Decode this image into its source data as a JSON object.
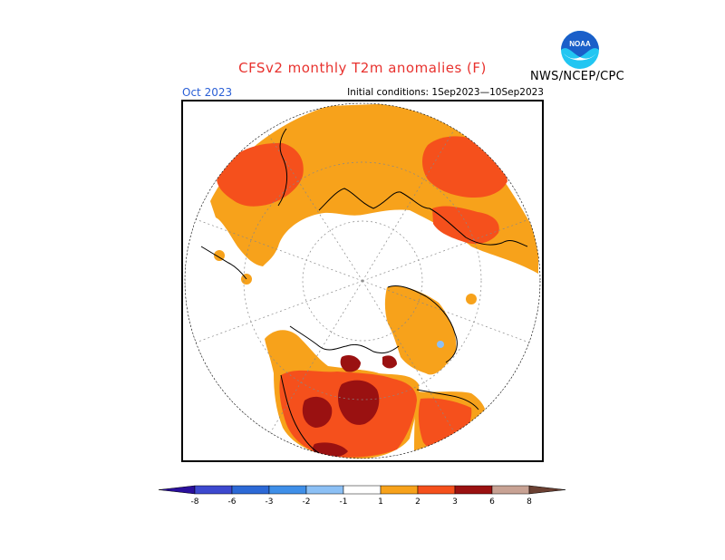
{
  "header": {
    "title": "CFSv2 monthly T2m anomalies (F)",
    "month": "Oct 2023",
    "initial_conditions": "Initial conditions: 1Sep2023—10Sep2023",
    "agency": "NWS/NCEP/CPC",
    "logo_text": "NOAA"
  },
  "colors": {
    "title": "#e8322e",
    "month": "#2a5fd6",
    "anomaly_plus_1": "#f7a21b",
    "anomaly_plus_2": "#f5501c",
    "anomaly_plus_3": "#9a1111",
    "noaa_blue": "#1a5fc9",
    "noaa_cyan": "#22c6f2"
  },
  "legend": {
    "tick_labels": [
      "-8",
      "-6",
      "-3",
      "-2",
      "-1",
      "1",
      "2",
      "3",
      "6",
      "8"
    ],
    "bins": [
      {
        "color": "#2a0f9c"
      },
      {
        "color": "#3d49cf"
      },
      {
        "color": "#2c69d6"
      },
      {
        "color": "#3f8fe8"
      },
      {
        "color": "#8cc0f5"
      },
      {
        "color": "#ffffff"
      },
      {
        "color": "#f7a21b"
      },
      {
        "color": "#f5501c"
      },
      {
        "color": "#9a1111"
      },
      {
        "color": "#c8a294"
      },
      {
        "color": "#6b4032"
      }
    ]
  }
}
